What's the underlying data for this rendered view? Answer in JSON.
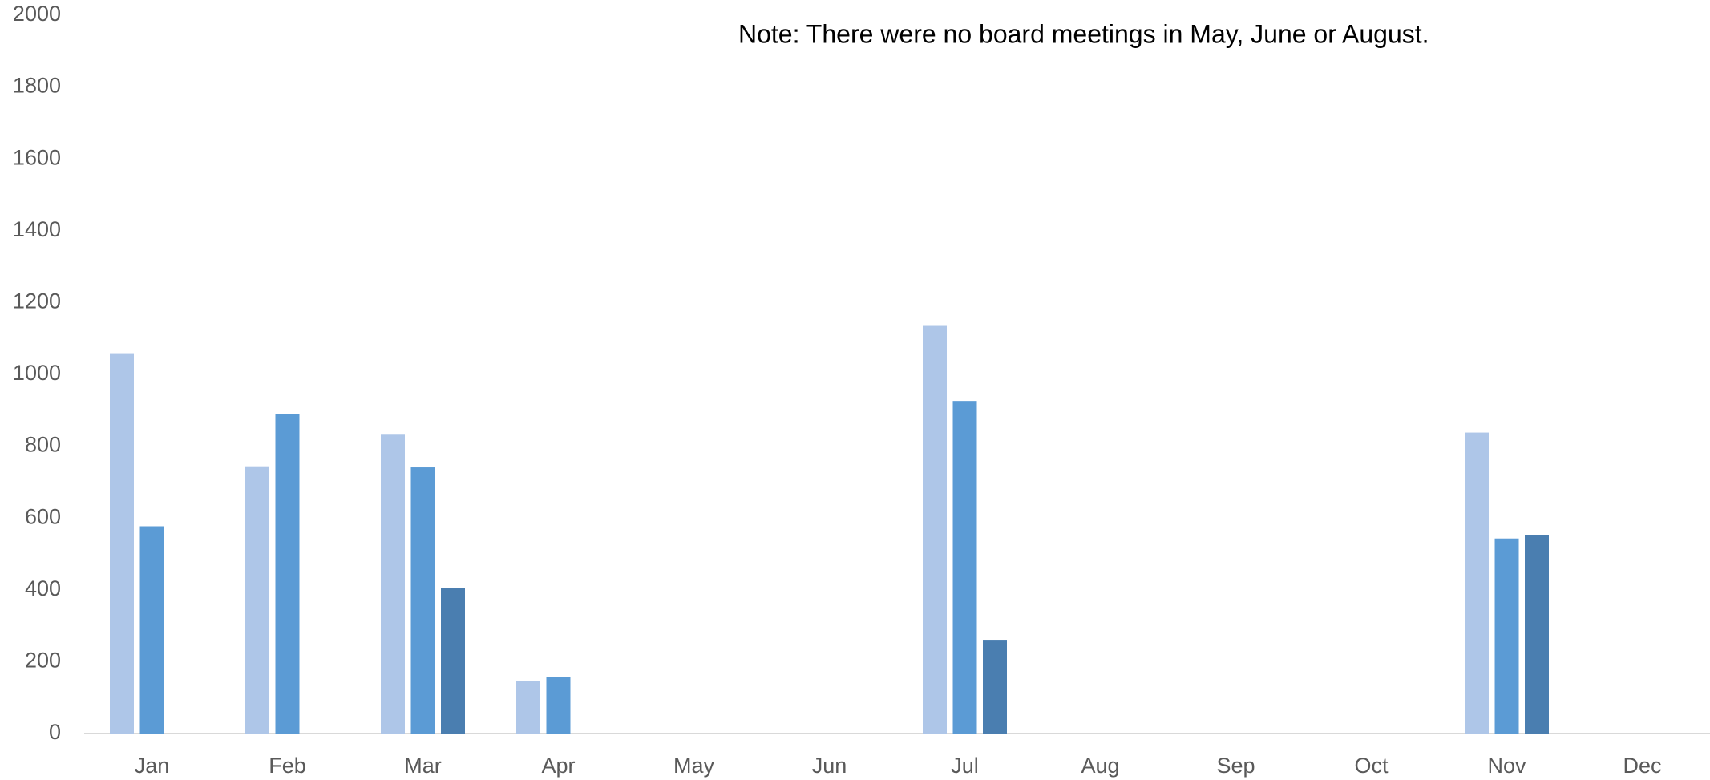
{
  "chart_data": {
    "type": "bar",
    "annotation": "Note: There were no board meetings in May, June or August.",
    "categories": [
      "Jan",
      "Feb",
      "Mar",
      "Apr",
      "May",
      "Jun",
      "Jul",
      "Aug",
      "Sep",
      "Oct",
      "Nov",
      "Dec"
    ],
    "series": [
      {
        "color": "#aec6e8",
        "values": [
          1059,
          744,
          832,
          146,
          null,
          null,
          1135,
          null,
          null,
          null,
          838,
          null
        ]
      },
      {
        "color": "#5b9bd5",
        "values": [
          577,
          889,
          741,
          158,
          null,
          null,
          926,
          null,
          null,
          null,
          543,
          null
        ]
      },
      {
        "color": "#4a7eb0",
        "values": [
          null,
          null,
          404,
          null,
          null,
          null,
          261,
          null,
          null,
          null,
          552,
          null
        ]
      }
    ],
    "ylim": [
      0,
      2000
    ],
    "yticks": [
      0,
      200,
      400,
      600,
      800,
      1000,
      1200,
      1400,
      1600,
      1800,
      2000
    ],
    "grid": false
  }
}
